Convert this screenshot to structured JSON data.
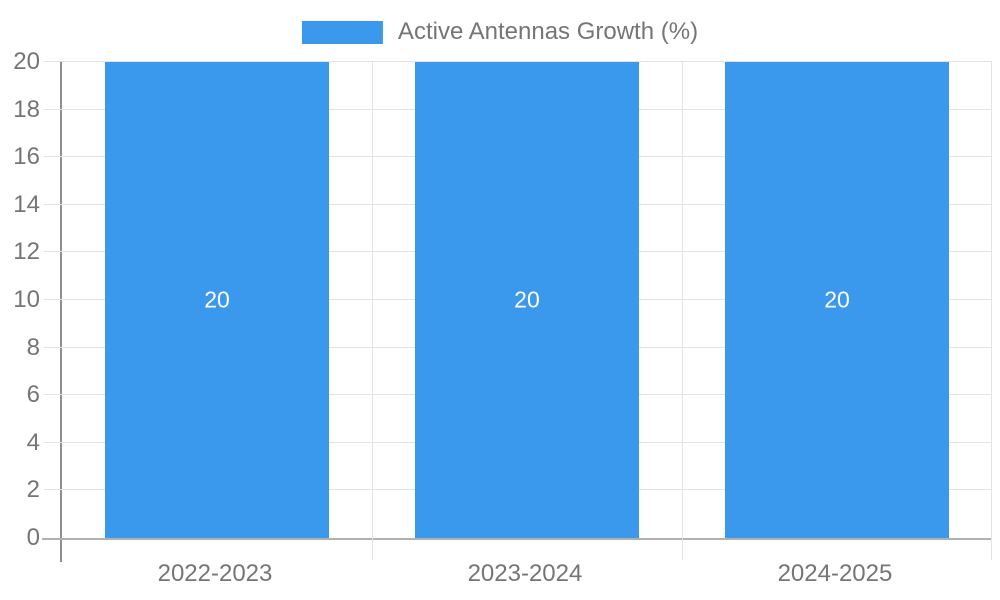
{
  "legend": {
    "label": "Active Antennas Growth (%)"
  },
  "chart_data": {
    "type": "bar",
    "title": "",
    "series_label": "Active Antennas Growth (%)",
    "categories": [
      "2022-2023",
      "2023-2024",
      "2024-2025"
    ],
    "values": [
      20,
      20,
      20
    ],
    "data_labels": [
      "20",
      "20",
      "20"
    ],
    "xlabel": "",
    "ylabel": "",
    "ylim": [
      0,
      20
    ],
    "yticks": [
      0,
      2,
      4,
      6,
      8,
      10,
      12,
      14,
      16,
      18,
      20
    ],
    "legend_position": "top-center",
    "grid": true,
    "colors": {
      "bar": "#3a99ec",
      "bar_label": "#ffffff",
      "axis_text": "#757575",
      "gridline": "#e3e3e3",
      "axis_line": "#9e9e9e",
      "background": "#ffffff"
    }
  }
}
